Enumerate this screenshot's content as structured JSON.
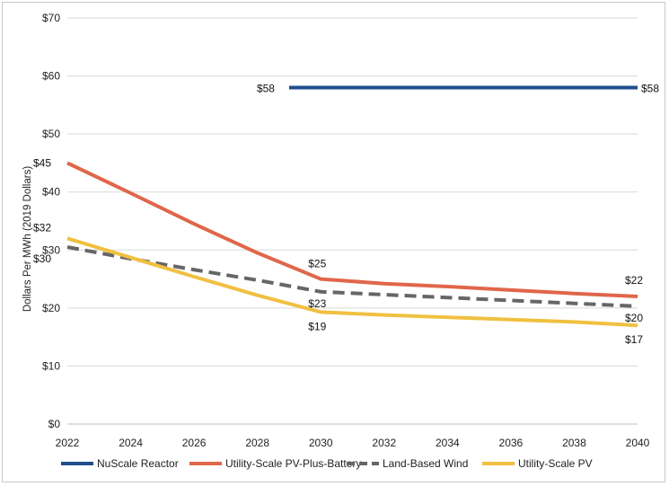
{
  "chart_data": {
    "type": "line",
    "xlabel": "",
    "ylabel": "Dollars Per MWh (2019 Dollars)",
    "xlim": [
      2022,
      2040
    ],
    "ylim": [
      0,
      70
    ],
    "x_ticks": [
      "2022",
      "2024",
      "2026",
      "2028",
      "2030",
      "2032",
      "2034",
      "2036",
      "2038",
      "2040"
    ],
    "y_ticks": [
      "$0",
      "$10",
      "$20",
      "$30",
      "$40",
      "$50",
      "$60",
      "$70"
    ],
    "grid": "horizontal",
    "legend_position": "bottom",
    "series": [
      {
        "name": "NuScale Reactor",
        "color": "#1f4e8c",
        "style": "solid",
        "points": [
          [
            2029,
            58
          ],
          [
            2040,
            58
          ]
        ]
      },
      {
        "name": "Utility-Scale PV-Plus-Battery",
        "color": "#e0664a",
        "style": "solid",
        "points": [
          [
            2022,
            45
          ],
          [
            2024,
            39.8
          ],
          [
            2026,
            34.5
          ],
          [
            2028,
            29.5
          ],
          [
            2030,
            25
          ],
          [
            2032,
            24.2
          ],
          [
            2034,
            23.7
          ],
          [
            2036,
            23.1
          ],
          [
            2038,
            22.5
          ],
          [
            2040,
            22
          ]
        ]
      },
      {
        "name": "Land-Based Wind",
        "color": "#666666",
        "style": "dashed",
        "points": [
          [
            2022,
            30.5
          ],
          [
            2024,
            28.5
          ],
          [
            2026,
            26.6
          ],
          [
            2028,
            24.8
          ],
          [
            2030,
            22.8
          ],
          [
            2032,
            22.3
          ],
          [
            2034,
            21.8
          ],
          [
            2036,
            21.3
          ],
          [
            2038,
            20.8
          ],
          [
            2040,
            20.3
          ]
        ]
      },
      {
        "name": "Utility-Scale PV",
        "color": "#f0c040",
        "style": "solid",
        "points": [
          [
            2022,
            32
          ],
          [
            2024,
            28.7
          ],
          [
            2026,
            25.4
          ],
          [
            2028,
            22.2
          ],
          [
            2030,
            19.3
          ],
          [
            2032,
            18.8
          ],
          [
            2034,
            18.4
          ],
          [
            2036,
            18
          ],
          [
            2038,
            17.6
          ],
          [
            2040,
            17
          ]
        ]
      }
    ],
    "annotations": [
      {
        "text": "$58",
        "x": 2029,
        "y": 58,
        "series": "NuScale Reactor"
      },
      {
        "text": "$58",
        "x": 2040,
        "y": 58,
        "series": "NuScale Reactor"
      },
      {
        "text": "$45",
        "x": 2022,
        "y": 45,
        "series": "Utility-Scale PV-Plus-Battery"
      },
      {
        "text": "$25",
        "x": 2030,
        "y": 25,
        "series": "Utility-Scale PV-Plus-Battery"
      },
      {
        "text": "$22",
        "x": 2040,
        "y": 22,
        "series": "Utility-Scale PV-Plus-Battery"
      },
      {
        "text": "$30",
        "x": 2022,
        "y": 30.5,
        "series": "Land-Based Wind"
      },
      {
        "text": "$23",
        "x": 2030,
        "y": 22.8,
        "series": "Land-Based Wind"
      },
      {
        "text": "$20",
        "x": 2040,
        "y": 20.3,
        "series": "Land-Based Wind"
      },
      {
        "text": "$32",
        "x": 2022,
        "y": 32,
        "series": "Utility-Scale PV"
      },
      {
        "text": "$19",
        "x": 2030,
        "y": 19.3,
        "series": "Utility-Scale PV"
      },
      {
        "text": "$17",
        "x": 2040,
        "y": 17,
        "series": "Utility-Scale PV"
      }
    ]
  }
}
